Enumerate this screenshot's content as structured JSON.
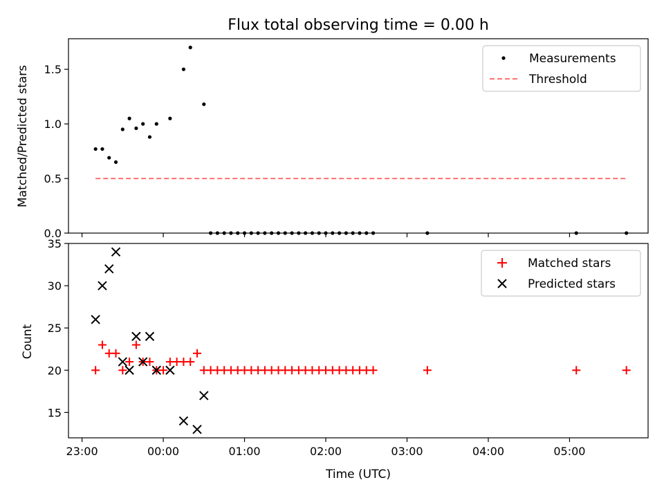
{
  "chart_data": [
    {
      "type": "scatter",
      "title": "Flux total observing time = 0.00 h",
      "xlabel": "",
      "ylabel": "Matched/Predicted stars",
      "ylim": [
        0,
        1.78
      ],
      "yticks": [
        "0.0",
        "0.5",
        "1.0",
        "1.5"
      ],
      "legend": "top-right",
      "series": [
        {
          "name": "Measurements",
          "marker": "dot",
          "color": "#000000",
          "x": [
            "23:10",
            "23:15",
            "23:20",
            "23:25",
            "23:30",
            "23:35",
            "23:40",
            "23:45",
            "23:50",
            "23:55",
            "00:05",
            "00:15",
            "00:20",
            "00:30",
            "00:35",
            "00:40",
            "00:45",
            "00:50",
            "00:55",
            "01:00",
            "01:05",
            "01:10",
            "01:15",
            "01:20",
            "01:25",
            "01:30",
            "01:35",
            "01:40",
            "01:45",
            "01:50",
            "01:55",
            "02:00",
            "02:05",
            "02:10",
            "02:15",
            "02:20",
            "02:25",
            "02:30",
            "02:35",
            "03:15",
            "05:05",
            "05:42"
          ],
          "y": [
            0.77,
            0.77,
            0.69,
            0.65,
            0.95,
            1.05,
            0.96,
            1.0,
            0.88,
            1.0,
            1.05,
            1.5,
            1.7,
            1.18,
            0,
            0,
            0,
            0,
            0,
            0,
            0,
            0,
            0,
            0,
            0,
            0,
            0,
            0,
            0,
            0,
            0,
            0,
            0,
            0,
            0,
            0,
            0,
            0,
            0,
            0,
            0,
            0
          ]
        },
        {
          "name": "Threshold",
          "style": "dashed",
          "color": "#ff7070",
          "x": [
            "23:10",
            "05:42"
          ],
          "y": [
            0.5,
            0.5
          ]
        }
      ]
    },
    {
      "type": "scatter",
      "xlabel": "Time (UTC)",
      "ylabel": "Count",
      "ylim": [
        12,
        35
      ],
      "yticks": [
        "15",
        "20",
        "25",
        "30",
        "35"
      ],
      "xticks": [
        "23:00",
        "00:00",
        "01:00",
        "02:00",
        "03:00",
        "04:00",
        "05:00"
      ],
      "legend": "top-right",
      "series": [
        {
          "name": "Matched stars",
          "marker": "plus",
          "color": "#ff0000",
          "x": [
            "23:10",
            "23:15",
            "23:20",
            "23:25",
            "23:30",
            "23:35",
            "23:40",
            "23:45",
            "23:50",
            "23:55",
            "00:00",
            "00:05",
            "00:10",
            "00:15",
            "00:20",
            "00:25",
            "00:30",
            "00:35",
            "00:40",
            "00:45",
            "00:50",
            "00:55",
            "01:00",
            "01:05",
            "01:10",
            "01:15",
            "01:20",
            "01:25",
            "01:30",
            "01:35",
            "01:40",
            "01:45",
            "01:50",
            "01:55",
            "02:00",
            "02:05",
            "02:10",
            "02:15",
            "02:20",
            "02:25",
            "02:30",
            "02:35",
            "03:15",
            "05:05",
            "05:42"
          ],
          "y": [
            20,
            23,
            22,
            22,
            20,
            21,
            23,
            21,
            21,
            20,
            20,
            21,
            21,
            21,
            21,
            22,
            20,
            20,
            20,
            20,
            20,
            20,
            20,
            20,
            20,
            20,
            20,
            20,
            20,
            20,
            20,
            20,
            20,
            20,
            20,
            20,
            20,
            20,
            20,
            20,
            20,
            20,
            20,
            20,
            20
          ]
        },
        {
          "name": "Predicted stars",
          "marker": "x",
          "color": "#000000",
          "x": [
            "23:10",
            "23:15",
            "23:20",
            "23:25",
            "23:30",
            "23:35",
            "23:40",
            "23:45",
            "23:50",
            "23:55",
            "00:05",
            "00:15",
            "00:25",
            "00:30"
          ],
          "y": [
            26,
            30,
            32,
            34,
            21,
            20,
            24,
            21,
            24,
            20,
            20,
            14,
            13,
            17
          ]
        }
      ]
    }
  ]
}
